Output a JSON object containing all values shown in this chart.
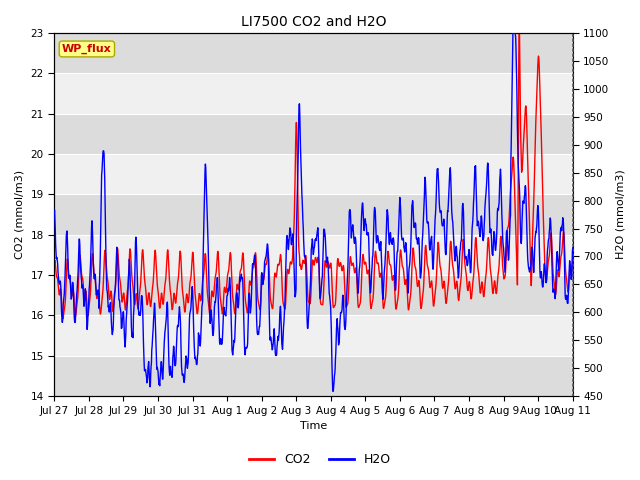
{
  "title": "LI7500 CO2 and H2O",
  "xlabel": "Time",
  "ylabel_left": "CO2 (mmol/m3)",
  "ylabel_right": "H2O (mmol/m3)",
  "site_label": "WP_flux",
  "co2_ylim": [
    14.0,
    23.0
  ],
  "h2o_ylim": [
    450,
    1100
  ],
  "co2_yticks": [
    14.0,
    15.0,
    16.0,
    17.0,
    18.0,
    19.0,
    20.0,
    21.0,
    22.0,
    23.0
  ],
  "h2o_yticks": [
    450,
    500,
    550,
    600,
    650,
    700,
    750,
    800,
    850,
    900,
    950,
    1000,
    1050,
    1100
  ],
  "xtick_labels": [
    "Jul 27",
    "Jul 28",
    "Jul 29",
    "Jul 30",
    "Jul 31",
    "Aug 1",
    "Aug 2",
    "Aug 3",
    "Aug 4",
    "Aug 5",
    "Aug 6",
    "Aug 7",
    "Aug 8",
    "Aug 9",
    "Aug 10",
    "Aug 11"
  ],
  "co2_color": "#FF0000",
  "h2o_color": "#0000FF",
  "background_color": "#FFFFFF",
  "plot_bg_light": "#F0F0F0",
  "plot_bg_dark": "#DCDCDC",
  "grid_color": "#FFFFFF",
  "title_fontsize": 10,
  "label_fontsize": 8,
  "tick_fontsize": 7.5,
  "legend_fontsize": 9,
  "site_fontsize": 8,
  "line_width": 1.0,
  "n_points": 1500
}
